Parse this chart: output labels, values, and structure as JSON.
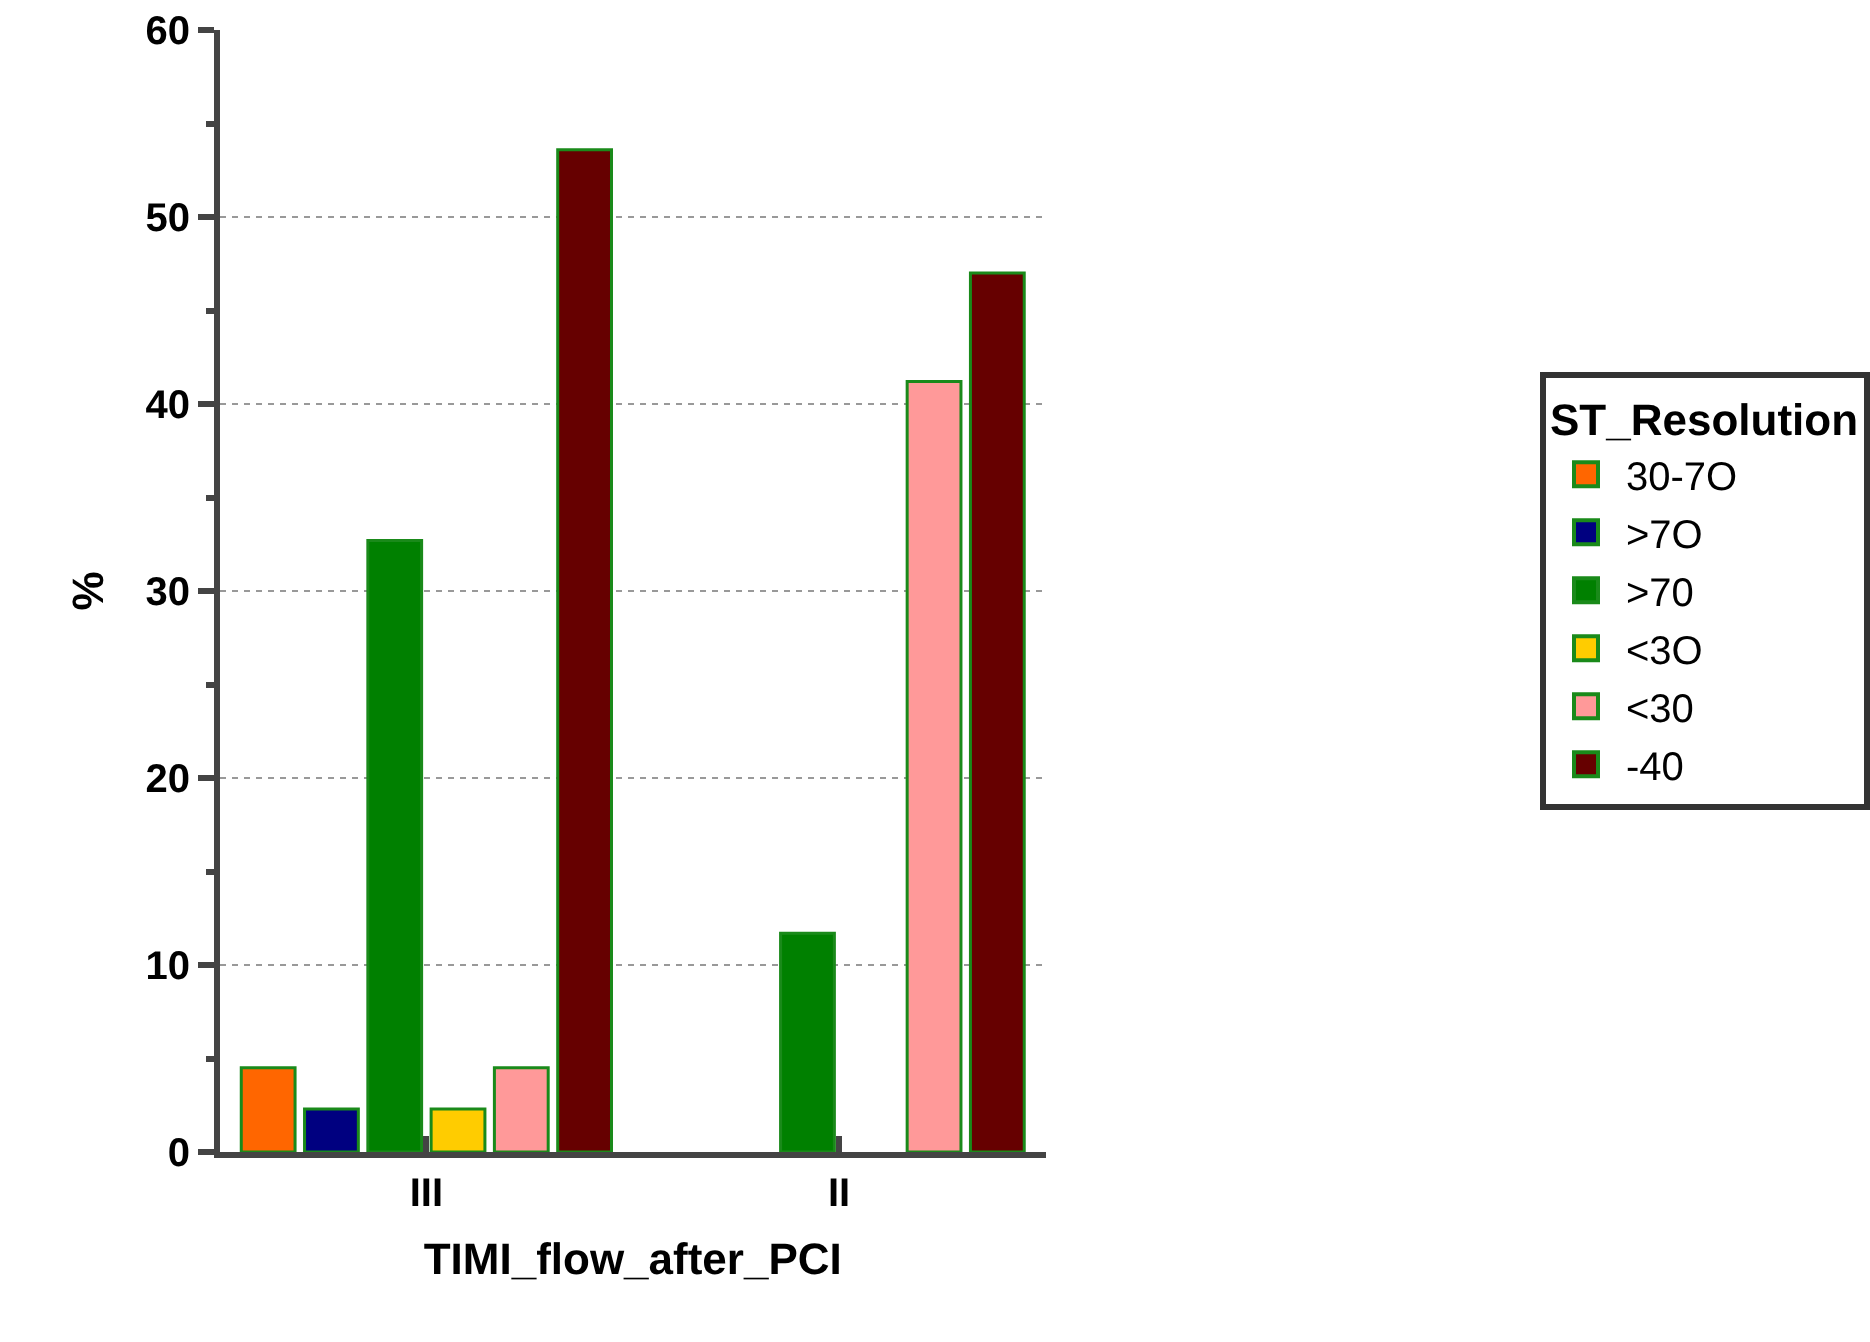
{
  "chart_data": {
    "type": "bar",
    "xlabel": "TIMI_flow_after_PCI",
    "ylabel": "%",
    "legend_title": "ST_Resolution",
    "categories": [
      "III",
      "II"
    ],
    "series": [
      {
        "name": "30-7O",
        "color": "#ff6600",
        "values": [
          4.5,
          null
        ]
      },
      {
        "name": ">7O",
        "color": "#000080",
        "values": [
          2.3,
          null
        ]
      },
      {
        "name": ">70",
        "color": "#008000",
        "values": [
          32.7,
          11.7
        ]
      },
      {
        "name": "<3O",
        "color": "#ffcc00",
        "values": [
          2.3,
          null
        ]
      },
      {
        "name": "<30",
        "color": "#ff9999",
        "values": [
          4.5,
          41.2
        ]
      },
      {
        "name": "-40",
        "color": "#660000",
        "values": [
          53.6,
          47.0
        ]
      }
    ],
    "ylim": [
      0,
      60
    ],
    "yticks": [
      0,
      10,
      20,
      30,
      40,
      50,
      60
    ],
    "grid": "y",
    "legend": "right"
  }
}
